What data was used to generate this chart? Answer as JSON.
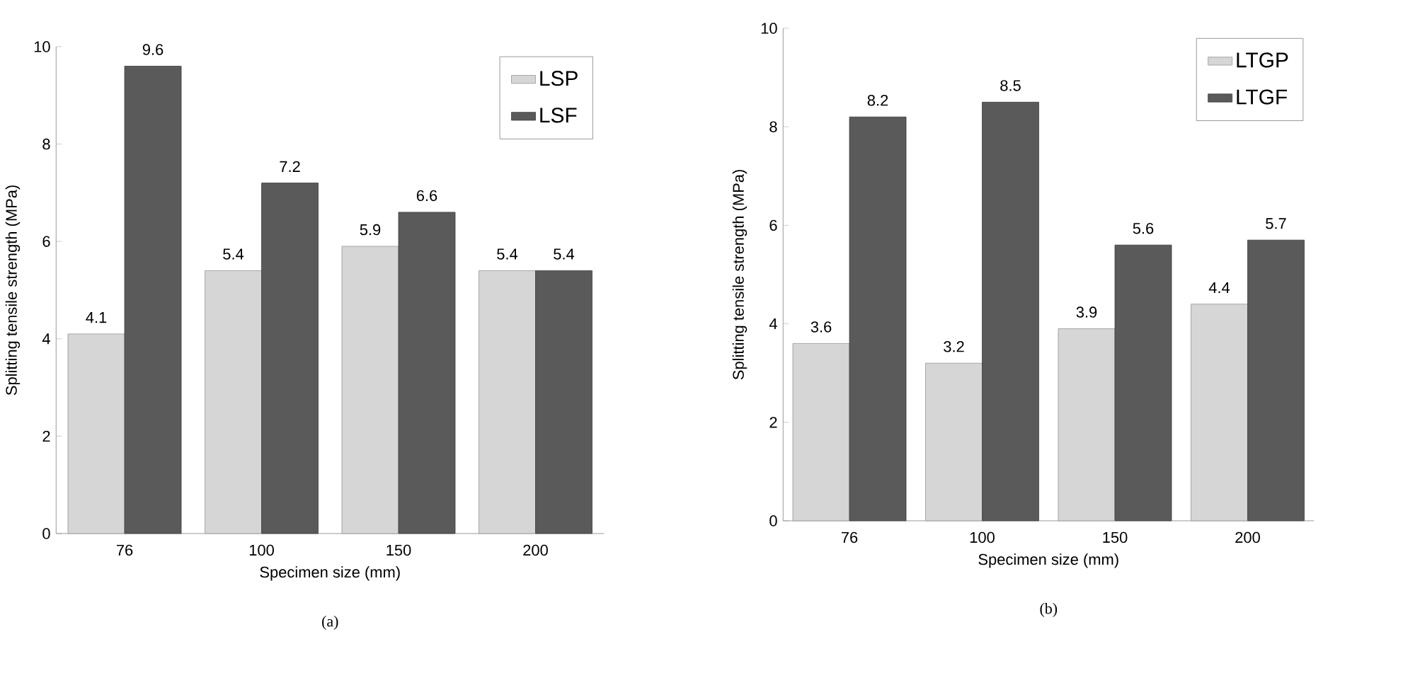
{
  "chart_data": [
    {
      "type": "bar",
      "categories": [
        "76",
        "100",
        "150",
        "200"
      ],
      "xlabel": "Specimen size (mm)",
      "ylabel": "Splitting tensile strength (MPa)",
      "ylim": [
        0,
        10
      ],
      "yticks": [
        0,
        2,
        4,
        6,
        8,
        10
      ],
      "data_labels": true,
      "legend": "top right",
      "annotations": [
        "(a)"
      ],
      "series": [
        {
          "name": "LSP",
          "color": "#d6d6d6",
          "values": [
            4.1,
            5.4,
            5.9,
            5.4
          ]
        },
        {
          "name": "LSF",
          "color": "#5a5a5a",
          "values": [
            9.6,
            7.2,
            6.6,
            5.4
          ]
        }
      ]
    },
    {
      "type": "bar",
      "categories": [
        "76",
        "100",
        "150",
        "200"
      ],
      "xlabel": "Specimen size (mm)",
      "ylabel": "Splitting tensile strength (MPa)",
      "ylim": [
        0,
        10
      ],
      "yticks": [
        0,
        2,
        4,
        6,
        8,
        10
      ],
      "data_labels": true,
      "legend": "top right",
      "annotations": [
        "(b)"
      ],
      "series": [
        {
          "name": "LTGP",
          "color": "#d6d6d6",
          "values": [
            3.6,
            3.2,
            3.9,
            4.4
          ]
        },
        {
          "name": "LTGF",
          "color": "#5a5a5a",
          "values": [
            8.2,
            8.5,
            5.6,
            5.7
          ]
        }
      ]
    }
  ]
}
